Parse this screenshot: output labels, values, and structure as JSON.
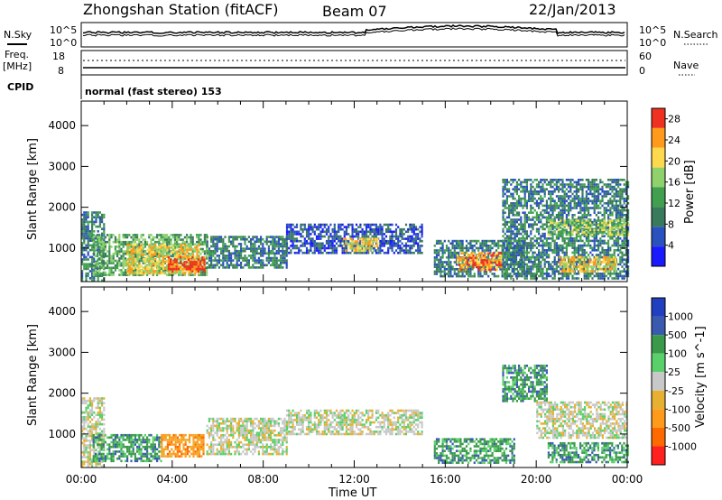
{
  "header": {
    "station": "Zhongshan Station (fitACF)",
    "beam": "Beam 07",
    "date": "22/Jan/2013"
  },
  "noise_panel": {
    "left_label": "N.Sky",
    "right_label": "N.Search",
    "left_ticks": [
      "10^5",
      "10^0"
    ],
    "right_ticks": [
      "10^5",
      "10^0"
    ]
  },
  "freq_panel": {
    "left_label_1": "Freq.",
    "left_label_2": "[MHz]",
    "right_label": "Nave",
    "left_ticks": [
      "18",
      "8"
    ],
    "right_ticks": [
      "60",
      "0"
    ],
    "cpid_label": "CPID",
    "cpid_text": "normal (fast stereo) 153"
  },
  "time_axis": {
    "label": "Time UT",
    "ticks": [
      "00:00",
      "04:00",
      "08:00",
      "12:00",
      "16:00",
      "20:00",
      "00:00"
    ]
  },
  "colors": {
    "power": [
      "#1a1aff",
      "#2a52be",
      "#3a7a5c",
      "#41a050",
      "#8fd16a",
      "#ffd94d",
      "#ff9a1a",
      "#f03020"
    ],
    "velocity": [
      "#ff2020",
      "#ff6a00",
      "#ff9a1a",
      "#e8b030",
      "#c8c8c8",
      "#5ad06a",
      "#3a9a4a",
      "#3a5ab0",
      "#2040c0"
    ]
  },
  "chart_data": [
    {
      "type": "heatmap",
      "title": "Power",
      "xlabel": "",
      "ylabel": "Slant Range [km]",
      "x_ticks": [
        "00:00",
        "04:00",
        "08:00",
        "12:00",
        "16:00",
        "20:00",
        "00:00"
      ],
      "y_ticks": [
        "1000",
        "2000",
        "3000",
        "4000"
      ],
      "xlim_hours": [
        0,
        24
      ],
      "ylim_km": [
        180,
        4600
      ],
      "colorbar_label": "Power [dB]",
      "colorbar_ticks": [
        "4",
        "8",
        "12",
        "16",
        "20",
        "24",
        "28"
      ],
      "colorbar_range": [
        0,
        30
      ],
      "regions": [
        {
          "t0": 0.0,
          "t1": 1.0,
          "r0": 180,
          "r1": 1900,
          "level": 2
        },
        {
          "t0": 0.5,
          "t1": 5.5,
          "r0": 350,
          "r1": 1350,
          "level": 3
        },
        {
          "t0": 2.0,
          "t1": 5.2,
          "r0": 400,
          "r1": 1100,
          "level": 5
        },
        {
          "t0": 3.8,
          "t1": 5.4,
          "r0": 450,
          "r1": 800,
          "level": 7
        },
        {
          "t0": 5.5,
          "t1": 9.0,
          "r0": 500,
          "r1": 1300,
          "level": 2
        },
        {
          "t0": 9.0,
          "t1": 15.0,
          "r0": 900,
          "r1": 1600,
          "level": 1
        },
        {
          "t0": 11.5,
          "t1": 13.0,
          "r0": 950,
          "r1": 1250,
          "level": 5
        },
        {
          "t0": 15.5,
          "t1": 19.5,
          "r0": 300,
          "r1": 1200,
          "level": 2
        },
        {
          "t0": 16.5,
          "t1": 18.5,
          "r0": 450,
          "r1": 900,
          "level": 6
        },
        {
          "t0": 18.5,
          "t1": 24.0,
          "r0": 250,
          "r1": 2700,
          "level": 2
        },
        {
          "t0": 20.5,
          "t1": 24.0,
          "r0": 1300,
          "r1": 1700,
          "level": 4
        },
        {
          "t0": 21.0,
          "t1": 23.5,
          "r0": 400,
          "r1": 800,
          "level": 5
        }
      ]
    },
    {
      "type": "heatmap",
      "title": "Velocity",
      "xlabel": "Time UT",
      "ylabel": "Slant Range [km]",
      "x_ticks": [
        "00:00",
        "04:00",
        "08:00",
        "12:00",
        "16:00",
        "20:00",
        "00:00"
      ],
      "y_ticks": [
        "1000",
        "2000",
        "3000",
        "4000"
      ],
      "xlim_hours": [
        0,
        24
      ],
      "ylim_km": [
        180,
        4600
      ],
      "colorbar_label": "Velocity [m s^-1]",
      "colorbar_ticks": [
        "1000",
        "500",
        "100",
        "25",
        "-25",
        "-100",
        "-500",
        "-1000"
      ],
      "regions": [
        {
          "t0": 0.0,
          "t1": 1.0,
          "r0": 180,
          "r1": 1900,
          "level": 4
        },
        {
          "t0": 0.5,
          "t1": 3.5,
          "r0": 350,
          "r1": 1000,
          "level": 6
        },
        {
          "t0": 3.5,
          "t1": 5.4,
          "r0": 450,
          "r1": 1000,
          "level": 2
        },
        {
          "t0": 5.5,
          "t1": 9.0,
          "r0": 500,
          "r1": 1400,
          "level": 4
        },
        {
          "t0": 9.0,
          "t1": 15.0,
          "r0": 1000,
          "r1": 1600,
          "level": 4
        },
        {
          "t0": 15.5,
          "t1": 19.0,
          "r0": 300,
          "r1": 900,
          "level": 6
        },
        {
          "t0": 18.5,
          "t1": 20.5,
          "r0": 1800,
          "r1": 2700,
          "level": 6
        },
        {
          "t0": 20.0,
          "t1": 24.0,
          "r0": 900,
          "r1": 1800,
          "level": 4
        },
        {
          "t0": 20.5,
          "t1": 24.0,
          "r0": 300,
          "r1": 800,
          "level": 6
        }
      ]
    }
  ]
}
